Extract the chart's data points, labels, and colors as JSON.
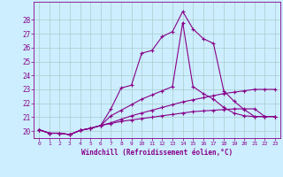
{
  "xlabel": "Windchill (Refroidissement éolien,°C)",
  "background_color": "#cceeff",
  "grid_color": "#aacccc",
  "line_color": "#880088",
  "x_values": [
    0,
    1,
    2,
    3,
    4,
    5,
    6,
    7,
    8,
    9,
    10,
    11,
    12,
    13,
    14,
    15,
    16,
    17,
    18,
    19,
    20,
    21,
    22,
    23
  ],
  "series": [
    [
      20.1,
      19.85,
      19.85,
      19.75,
      20.05,
      20.2,
      20.4,
      21.6,
      23.1,
      23.3,
      25.6,
      25.8,
      26.8,
      27.15,
      28.6,
      27.35,
      26.65,
      26.3,
      22.9,
      22.15,
      21.55,
      21.05,
      21.05,
      21.05
    ],
    [
      20.1,
      19.85,
      19.85,
      19.75,
      20.05,
      20.2,
      20.4,
      21.1,
      21.5,
      21.9,
      22.3,
      22.6,
      22.9,
      23.2,
      27.8,
      23.2,
      22.7,
      22.3,
      21.7,
      21.3,
      21.1,
      21.05,
      21.05,
      21.05
    ],
    [
      20.1,
      19.85,
      19.85,
      19.75,
      20.05,
      20.2,
      20.4,
      20.6,
      20.85,
      21.1,
      21.3,
      21.5,
      21.7,
      21.9,
      22.1,
      22.25,
      22.4,
      22.55,
      22.7,
      22.8,
      22.9,
      23.0,
      23.0,
      23.0
    ],
    [
      20.1,
      19.85,
      19.85,
      19.75,
      20.05,
      20.2,
      20.4,
      20.55,
      20.7,
      20.8,
      20.9,
      21.0,
      21.1,
      21.2,
      21.3,
      21.4,
      21.45,
      21.5,
      21.55,
      21.6,
      21.6,
      21.6,
      21.05,
      21.05
    ]
  ],
  "ylim": [
    19.5,
    29.3
  ],
  "yticks": [
    20,
    21,
    22,
    23,
    24,
    25,
    26,
    27,
    28
  ],
  "xlim": [
    -0.5,
    23.5
  ],
  "xticks": [
    0,
    1,
    2,
    3,
    4,
    5,
    6,
    7,
    8,
    9,
    10,
    11,
    12,
    13,
    14,
    15,
    16,
    17,
    18,
    19,
    20,
    21,
    22,
    23
  ]
}
